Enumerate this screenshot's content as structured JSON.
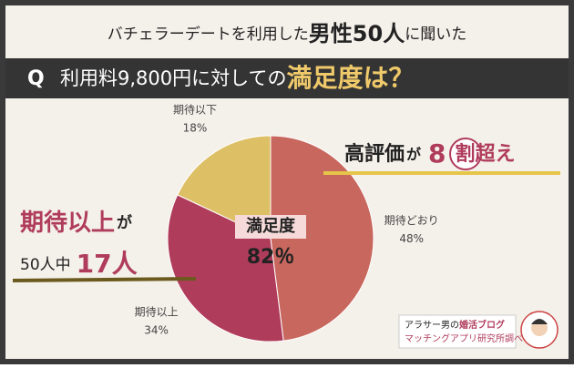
{
  "header": {
    "title_parts": [
      "バチェラーデートを利用した",
      "男性50人",
      "に聞いた"
    ]
  },
  "question": {
    "prefix": "Q",
    "text": "利用料9,800円に対しての",
    "highlight": "満足度は？"
  },
  "chart_data": {
    "type": "pie",
    "categories": [
      "期待どおり",
      "期待以上",
      "期待以下"
    ],
    "values": [
      48,
      34,
      18
    ],
    "value_labels": [
      "48%",
      "34%",
      "18%"
    ],
    "colors": [
      "#c8675e",
      "#b03c5c",
      "#ddbf66"
    ],
    "center_label": {
      "title": "満足度",
      "value": "82％"
    }
  },
  "annotations": {
    "right": [
      "高評価",
      "が",
      "8",
      "割超え"
    ],
    "left_top": [
      "期待以上",
      "が"
    ],
    "left_bottom": [
      "50人中",
      "17人"
    ]
  },
  "credit": {
    "line1": [
      "アラサー男の",
      "婚活ブログ"
    ],
    "line2": "マッチングアプリ研究所調べ"
  }
}
